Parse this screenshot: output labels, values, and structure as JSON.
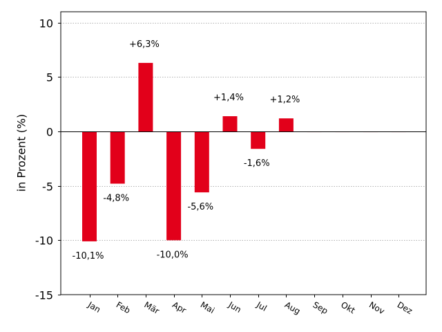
{
  "chart_data": {
    "type": "bar",
    "title": "",
    "xlabel": "",
    "ylabel": "in Prozent (%)",
    "categories": [
      "Jan",
      "Feb",
      "Mär",
      "Apr",
      "Mai",
      "Jun",
      "Jul",
      "Aug",
      "Sep",
      "Okt",
      "Nov",
      "Dez"
    ],
    "values": [
      -10.1,
      -4.8,
      6.3,
      -10.0,
      -5.6,
      1.4,
      -1.6,
      1.2,
      0,
      0,
      0,
      0
    ],
    "data_labels": [
      "-10,1%",
      "-4,8%",
      "+6,3%",
      "-10,0%",
      "-5,6%",
      "+1,4%",
      "-1,6%",
      "+1,2%",
      "",
      "",
      "",
      ""
    ],
    "ylim": [
      -15,
      11
    ],
    "yticks": [
      -15,
      -10,
      -5,
      0,
      5,
      10
    ],
    "ytick_labels": [
      "-15",
      "-10",
      "-5",
      "0",
      "5",
      "10"
    ],
    "grid": "horizontal dotted",
    "bar_color": "#e2001a",
    "gridline_color": "#b0b0b0",
    "axis_color": "#000000"
  }
}
